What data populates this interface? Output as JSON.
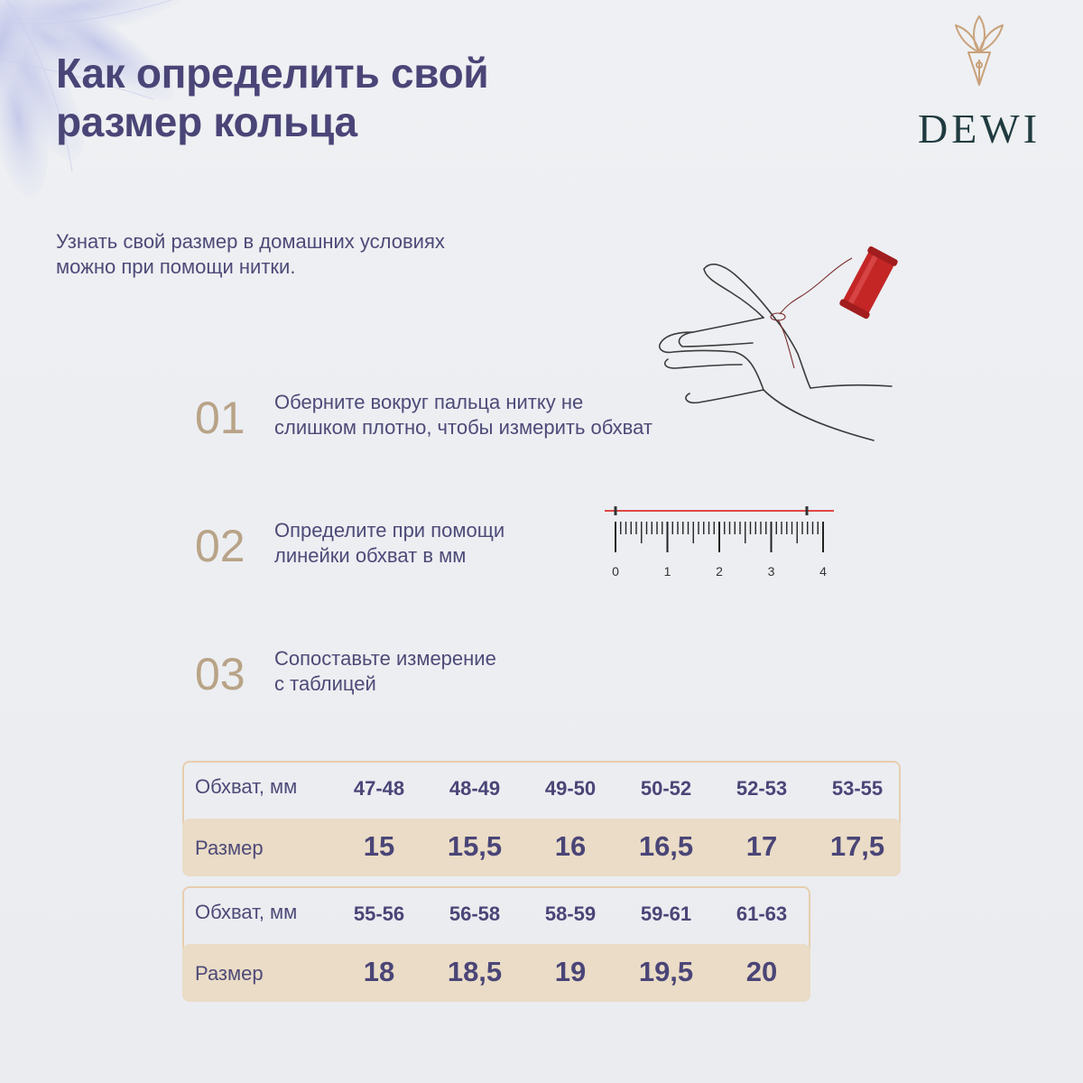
{
  "title": {
    "line1": "Как определить свой",
    "line2": "размер кольца"
  },
  "logo": {
    "text": "DEWI",
    "icon": "lotus-pen-icon"
  },
  "intro": {
    "line1": "Узнать свой размер в домашних условиях",
    "line2": "можно при помощи нитки."
  },
  "steps": [
    {
      "number": "01",
      "line1": "Оберните вокруг пальца нитку не",
      "line2": "слишком плотно, чтобы измерить обхват"
    },
    {
      "number": "02",
      "line1": "Определите при помощи",
      "line2": "линейки обхват в мм"
    },
    {
      "number": "03",
      "line1": "Сопоставьте измерение",
      "line2": "с таблицей"
    }
  ],
  "ruler": {
    "labels": [
      "0",
      "1",
      "2",
      "3",
      "4"
    ]
  },
  "tables": [
    {
      "range_label": "Обхват, мм",
      "size_label": "Размер",
      "ranges": [
        "47-48",
        "48-49",
        "49-50",
        "50-52",
        "52-53",
        "53-55"
      ],
      "sizes": [
        "15",
        "15,5",
        "16",
        "16,5",
        "17",
        "17,5"
      ]
    },
    {
      "range_label": "Обхват, мм",
      "size_label": "Размер",
      "ranges": [
        "55-56",
        "56-58",
        "58-59",
        "59-61",
        "61-63"
      ],
      "sizes": [
        "18",
        "18,5",
        "19",
        "19,5",
        "20"
      ]
    }
  ],
  "colors": {
    "title": "#4a4577",
    "text": "#4e4a78",
    "step_number": "#b9a387",
    "table_border": "#e7ceae",
    "table_fill": "#eadcc6",
    "logo_text": "#1f3b3f",
    "logo_mark": "#c9a27a",
    "thread": "#d93a3a"
  }
}
